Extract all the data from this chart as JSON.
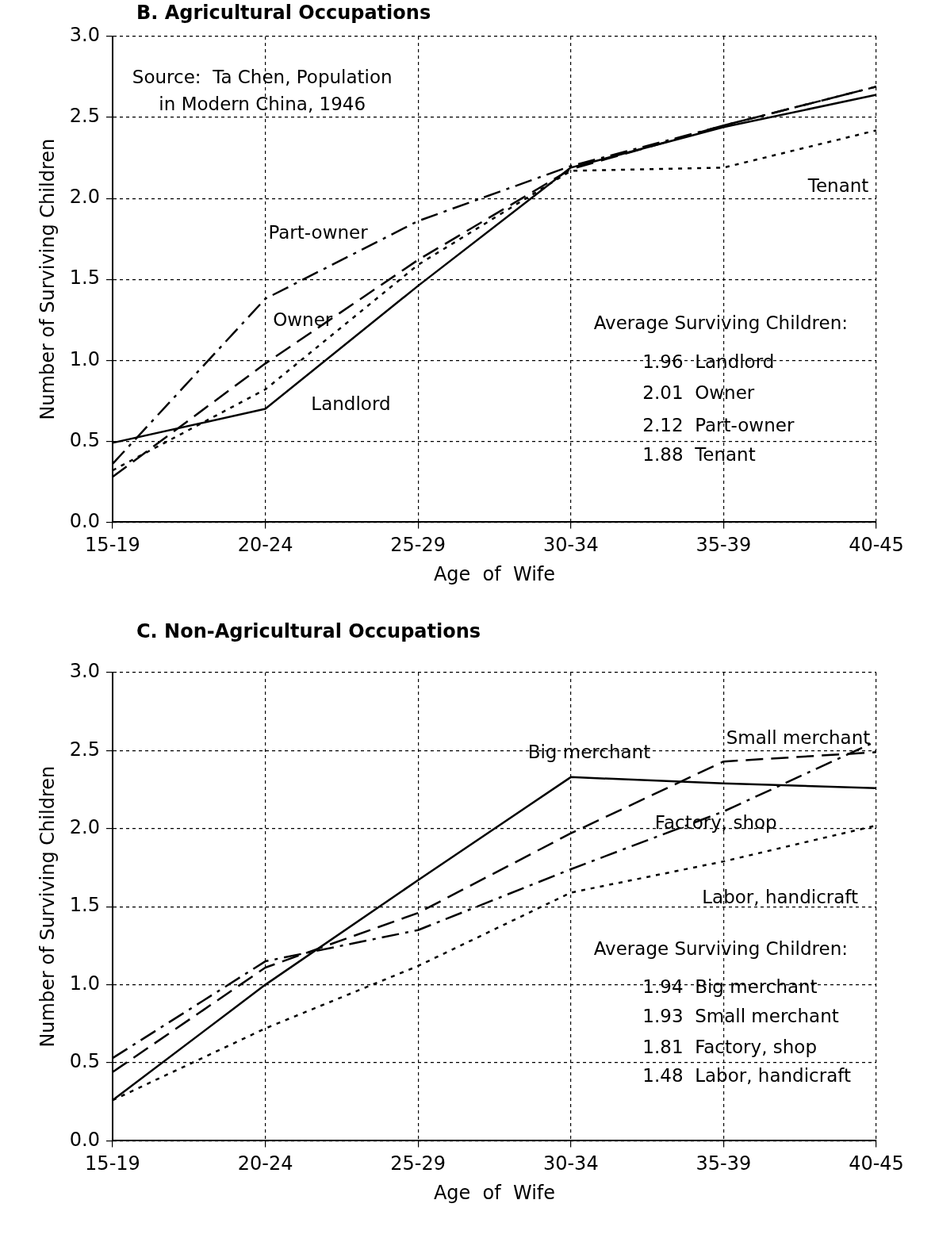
{
  "chart_data": [
    {
      "type": "line",
      "title": "B.  Agricultural Occupations",
      "xlabel": "Age  of  Wife",
      "ylabel": "Number of Surviving Children",
      "categories": [
        "15-19",
        "20-24",
        "25-29",
        "30-34",
        "35-39",
        "40-45"
      ],
      "series": [
        {
          "name": "Landlord",
          "color": "#000000",
          "line_style": "solid",
          "values": [
            0.49,
            0.7,
            1.46,
            2.19,
            2.44,
            2.64
          ]
        },
        {
          "name": "Owner",
          "color": "#000000",
          "line_style": "dashed",
          "values": [
            0.28,
            0.98,
            1.62,
            2.18,
            2.45,
            2.69
          ]
        },
        {
          "name": "Part-owner",
          "color": "#000000",
          "line_style": "dashdot",
          "values": [
            0.36,
            1.38,
            1.86,
            2.2,
            2.45,
            2.69
          ]
        },
        {
          "name": "Tenant",
          "color": "#000000",
          "line_style": "dotted",
          "values": [
            0.32,
            0.82,
            1.59,
            2.17,
            2.19,
            2.42
          ]
        }
      ],
      "ylim": [
        0,
        3
      ],
      "yticks": [
        {
          "value": 0,
          "label": "0.0"
        },
        {
          "value": 0.5,
          "label": "0.5"
        },
        {
          "value": 1,
          "label": "1.0"
        },
        {
          "value": 1.5,
          "label": "1.5"
        },
        {
          "value": 2,
          "label": "2.0"
        },
        {
          "value": 2.5,
          "label": "2.5"
        },
        {
          "value": 3,
          "label": "3.0"
        }
      ],
      "grid": true,
      "legend": false,
      "marker": "none",
      "annotations": [
        "Source:  Ta Chen, Population in Modern China, 1946",
        "Average Surviving Children:",
        "1.96  Landlord",
        "2.01  Owner",
        "2.12  Part-owner",
        "1.88  Tenant"
      ]
    },
    {
      "type": "line",
      "title": "C.  Non-Agricultural Occupations",
      "xlabel": "Age  of  Wife",
      "ylabel": "Number of Surviving Children",
      "categories": [
        "15-19",
        "20-24",
        "25-29",
        "30-34",
        "35-39",
        "40-45"
      ],
      "series": [
        {
          "name": "Big merchant",
          "color": "#000000",
          "line_style": "solid",
          "values": [
            0.26,
            1.0,
            1.67,
            2.33,
            2.29,
            2.26
          ]
        },
        {
          "name": "Small merchant",
          "color": "#000000",
          "line_style": "dashed",
          "values": [
            0.44,
            1.11,
            1.46,
            1.97,
            2.43,
            2.49
          ]
        },
        {
          "name": "Factory, shop",
          "color": "#000000",
          "line_style": "dashdot",
          "values": [
            0.53,
            1.15,
            1.35,
            1.74,
            2.11,
            2.56
          ]
        },
        {
          "name": "Labor, handicraft",
          "color": "#000000",
          "line_style": "dotted",
          "values": [
            0.26,
            0.72,
            1.12,
            1.59,
            1.79,
            2.02
          ]
        }
      ],
      "ylim": [
        0,
        3
      ],
      "yticks": [
        {
          "value": 0,
          "label": "0.0"
        },
        {
          "value": 0.5,
          "label": "0.5"
        },
        {
          "value": 1,
          "label": "1.0"
        },
        {
          "value": 1.5,
          "label": "1.5"
        },
        {
          "value": 2,
          "label": "2.0"
        },
        {
          "value": 2.5,
          "label": "2.5"
        },
        {
          "value": 3,
          "label": "3.0"
        }
      ],
      "grid": true,
      "legend": false,
      "marker": "none",
      "annotations": [
        "Average Surviving Children:",
        "1.94  Big merchant",
        "1.93  Small merchant",
        "1.81  Factory, shop",
        "1.48  Labor, handicraft"
      ]
    }
  ]
}
